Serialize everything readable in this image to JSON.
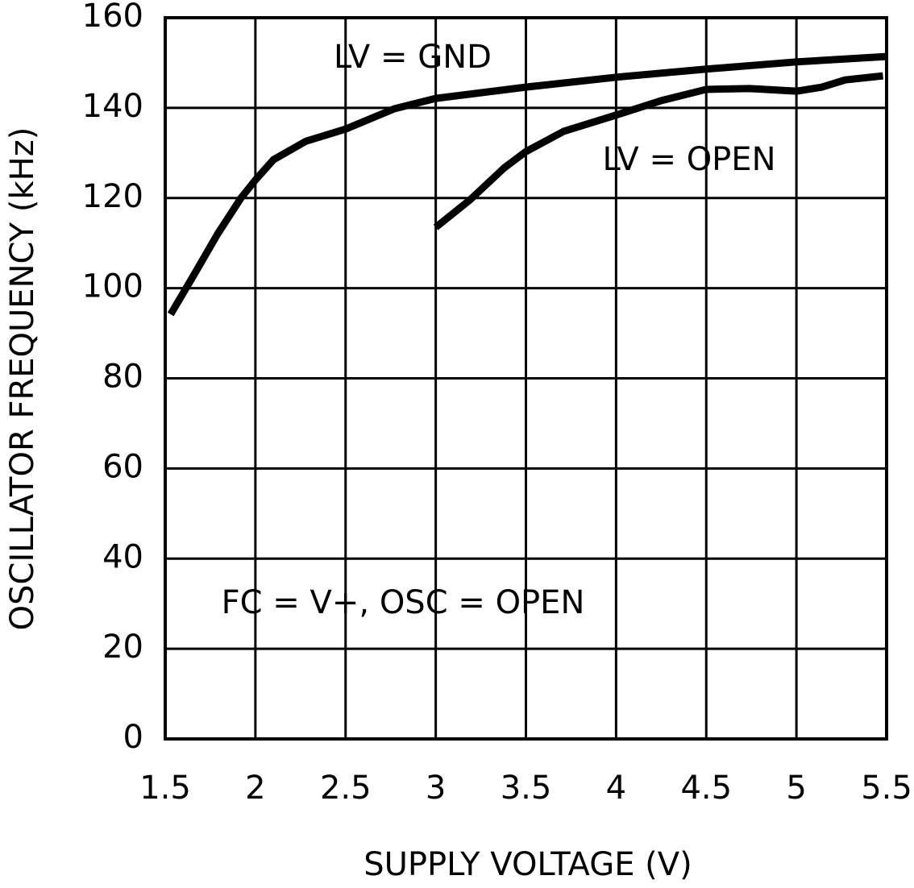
{
  "chart_data": {
    "type": "line",
    "xlabel": "SUPPLY VOLTAGE (V)",
    "ylabel": "OSCILLATOR FREQUENCY (kHz)",
    "xlim": [
      1.5,
      5.5
    ],
    "xticks": [
      1.5,
      2,
      2.5,
      3,
      3.5,
      4,
      4.5,
      5,
      5.5
    ],
    "ylim": [
      0,
      160
    ],
    "yticks": [
      0,
      20,
      40,
      60,
      80,
      100,
      120,
      140,
      160
    ],
    "grid": true,
    "series": [
      {
        "name": "LV = GND",
        "color": "#000000",
        "x": [
          1.53,
          1.66,
          1.79,
          1.92,
          2.0,
          2.1,
          2.28,
          2.5,
          2.77,
          3.0,
          3.5,
          4.0,
          4.5,
          5.0,
          5.5
        ],
        "values": [
          94.2,
          103,
          112,
          120,
          124,
          128.5,
          132.6,
          135.3,
          139.8,
          142.1,
          144.6,
          146.8,
          148.6,
          150.2,
          151.4
        ]
      },
      {
        "name": "LV = OPEN",
        "color": "#000000",
        "x": [
          3.0,
          3.19,
          3.38,
          3.5,
          3.71,
          4.0,
          4.25,
          4.5,
          4.74,
          5.0,
          5.14,
          5.27,
          5.48
        ],
        "values": [
          113.5,
          119.6,
          126.7,
          130.3,
          134.8,
          138.4,
          141.6,
          144.1,
          144.3,
          143.7,
          144.6,
          146.2,
          147.1
        ]
      }
    ],
    "annotations": [
      "FC = V+,  OSC = OPEN"
    ]
  }
}
